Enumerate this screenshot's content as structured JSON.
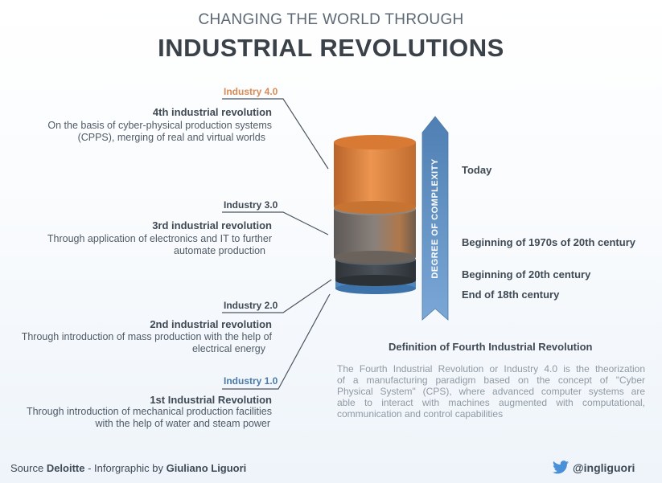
{
  "header": {
    "subtitle": "CHANGING THE WORLD THROUGH",
    "title": "INDUSTRIAL REVOLUTIONS"
  },
  "revolutions": [
    {
      "label": "Industry 4.0",
      "title": "4th industrial revolution",
      "desc": [
        "On the basis of cyber-physical production systems",
        "(CPPS), merging of real and virtual worlds"
      ]
    },
    {
      "label": "Industry 3.0",
      "title": "3rd industrial revolution",
      "desc": [
        "Through application of electronics and IT to further",
        "automate production"
      ]
    },
    {
      "label": "Industry 2.0",
      "title": "2nd industrial revolution",
      "desc": [
        "Through introduction of mass production with the help of",
        "electrical energy"
      ]
    },
    {
      "label": "Industry 1.0",
      "title": "1st Industrial Revolution",
      "desc": [
        "Through introduction of mechanical production facilities",
        "with the help of water and steam power"
      ]
    }
  ],
  "arrow_label": "DEGREE OF COMPLEXITY",
  "eras": [
    "Today",
    "Beginning of 1970s of 20th century",
    "Beginning of 20th century",
    "End of 18th century"
  ],
  "definition": {
    "title": "Definition of Fourth Industrial Revolution",
    "lines": [
      "The Fourth Industrial Revolution or Industry 4.0 is the theorization",
      "of a manufacturing paradigm based on the concept of \"Cyber",
      "Physical System\" (CPS), where advanced computer systems are",
      "able to interact with machines augmented with computational,",
      "communication and control capabilities"
    ]
  },
  "footer": {
    "source_prefix": "Source ",
    "source_name": "Deloitte",
    "infographic_prefix": " - Inforgraphic by ",
    "author": "Giuliano Liguori",
    "twitter_handle": "@ingliguori"
  },
  "colors": {
    "industry4": "#d98a55",
    "industry1": "#4b79a8",
    "cylinder_top": "#e2843a",
    "cylinder_mid": "#7b736e",
    "cylinder_low": "#3d4349",
    "cylinder_base": "#5b93c9",
    "arrow": "#5e8fc2"
  },
  "icons": [
    "twitter-bird-icon"
  ]
}
